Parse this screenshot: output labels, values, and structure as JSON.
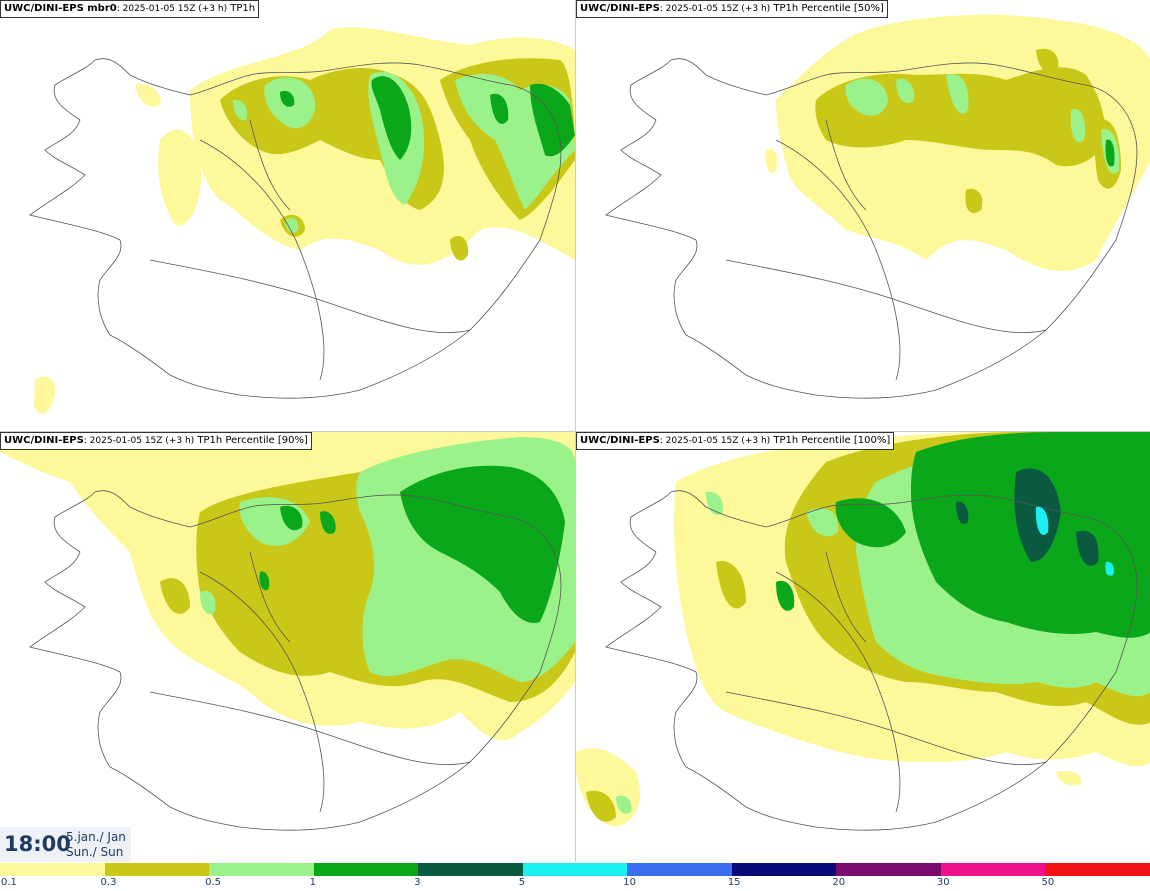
{
  "panels": [
    {
      "model": "UWC/DINI-EPS mbr0",
      "meta": ": 2025-01-05 15Z (+3 h)",
      "field": " TP1h"
    },
    {
      "model": "UWC/DINI-EPS",
      "meta": ": 2025-01-05 15Z (+3 h)",
      "field": " TP1h Percentile [50%]"
    },
    {
      "model": "UWC/DINI-EPS",
      "meta": ": 2025-01-05 15Z (+3 h)",
      "field": " TP1h Percentile [90%]"
    },
    {
      "model": "UWC/DINI-EPS",
      "meta": ": 2025-01-05 15Z (+3 h)",
      "field": " TP1h Percentile [100%]"
    }
  ],
  "time": {
    "clock": "18:00",
    "date_line1": "5.jan./ Jan",
    "date_line2": "Sun./ Sun"
  },
  "legend": {
    "colors": [
      "#fdf89a",
      "#c9c818",
      "#9cf28a",
      "#0aa71b",
      "#0a5a41",
      "#1af0f0",
      "#3b6df0",
      "#070a78",
      "#7a0a6e",
      "#f0108c",
      "#f01414"
    ],
    "ticks": [
      "0.1",
      "0.3",
      "0.5",
      "1",
      "3",
      "5",
      "10",
      "15",
      "20",
      "30",
      "50"
    ]
  },
  "map_colors": {
    "light": "#fdf89a",
    "olive": "#c9c818",
    "lightgreen": "#9cf28a",
    "green": "#0aa71b",
    "darkgreen": "#0a5a41",
    "cyan": "#1af0f0",
    "outline": "#555555"
  }
}
